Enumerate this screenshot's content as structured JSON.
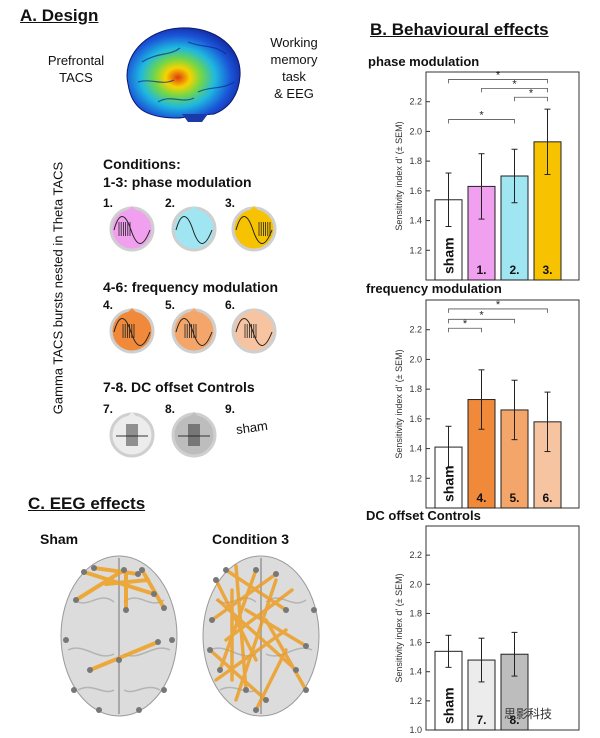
{
  "section_a": {
    "title": "A. Design",
    "prefrontal_line1": "Prefrontal",
    "prefrontal_line2": "TACS",
    "task_line1": "Working",
    "task_line2": "memory",
    "task_line3": "task",
    "task_line4": "& EEG",
    "vertical_label": "Gamma TACS bursts nested in Theta TACS",
    "conditions_header": "Conditions:",
    "group1_header": "1-3: phase modulation",
    "group2_header": "4-6: frequency modulation",
    "group3_header": "7-8. DC offset Controls",
    "items": [
      {
        "num": "1.",
        "color": "#f0a0ee"
      },
      {
        "num": "2.",
        "color": "#9fe6f2"
      },
      {
        "num": "3.",
        "color": "#f7c300"
      },
      {
        "num": "4.",
        "color": "#f08a3a"
      },
      {
        "num": "5.",
        "color": "#f4a66a"
      },
      {
        "num": "6.",
        "color": "#f6c4a0"
      },
      {
        "num": "7.",
        "color": "#ececec"
      },
      {
        "num": "8.",
        "color": "#bdbdbd"
      },
      {
        "num": "9.",
        "color": "#ffffff"
      }
    ],
    "sham_label": "sham"
  },
  "section_b": {
    "title": "B. Behavioural effects"
  },
  "section_c": {
    "title": "C. EEG effects",
    "left_label": "Sham",
    "right_label": "Condition 3"
  },
  "watermark": "思影科技",
  "chart_data": [
    {
      "type": "bar",
      "title": "phase modulation",
      "ylabel": "Sensitivity index d' (± SEM)",
      "ylim": [
        1.0,
        2.4
      ],
      "yticks": [
        "1.2",
        "1.4",
        "1.6",
        "1.8",
        "2.0",
        "2.2"
      ],
      "categories": [
        "sham",
        "1.",
        "2.",
        "3."
      ],
      "values": [
        1.54,
        1.63,
        1.7,
        1.93
      ],
      "errors": [
        0.18,
        0.22,
        0.18,
        0.22
      ],
      "colors": [
        "#ffffff",
        "#f0a0ee",
        "#9fe6f2",
        "#f7c300"
      ],
      "significance": [
        {
          "from": 0,
          "to": 3,
          "y": 2.35,
          "label": "*"
        },
        {
          "from": 1,
          "to": 3,
          "y": 2.29,
          "label": "*"
        },
        {
          "from": 2,
          "to": 3,
          "y": 2.23,
          "label": "*"
        },
        {
          "from": 0,
          "to": 2,
          "y": 2.08,
          "label": "*"
        }
      ]
    },
    {
      "type": "bar",
      "title": "frequency modulation",
      "ylabel": "Sensitivity index d' (± SEM)",
      "ylim": [
        1.0,
        2.4
      ],
      "yticks": [
        "1.2",
        "1.4",
        "1.6",
        "1.8",
        "2.0",
        "2.2"
      ],
      "categories": [
        "sham",
        "4.",
        "5.",
        "6."
      ],
      "values": [
        1.41,
        1.73,
        1.66,
        1.58
      ],
      "errors": [
        0.14,
        0.2,
        0.2,
        0.2
      ],
      "colors": [
        "#ffffff",
        "#f08a3a",
        "#f4a66a",
        "#f6c4a0"
      ],
      "significance": [
        {
          "from": 0,
          "to": 3,
          "y": 2.34,
          "label": "*"
        },
        {
          "from": 0,
          "to": 2,
          "y": 2.27,
          "label": "*"
        },
        {
          "from": 0,
          "to": 1,
          "y": 2.21,
          "label": "*"
        }
      ]
    },
    {
      "type": "bar",
      "title": "DC offset Controls",
      "ylabel": "Sensitivity index d' (± SEM)",
      "ylim": [
        1.0,
        2.4
      ],
      "yticks": [
        "1.0",
        "1.2",
        "1.4",
        "1.6",
        "1.8",
        "2.0",
        "2.2"
      ],
      "categories": [
        "sham",
        "7.",
        "8."
      ],
      "values": [
        1.54,
        1.48,
        1.52
      ],
      "errors": [
        0.11,
        0.15,
        0.15
      ],
      "colors": [
        "#ffffff",
        "#ececec",
        "#bdbdbd"
      ],
      "significance": []
    }
  ]
}
